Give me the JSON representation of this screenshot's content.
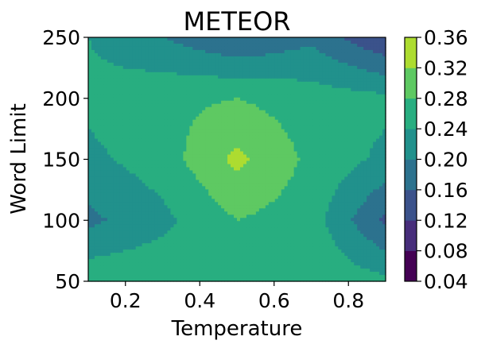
{
  "chart_data": {
    "type": "contourf",
    "title": "METEOR",
    "xlabel": "Temperature",
    "ylabel": "Word Limit",
    "xlim": [
      0.1,
      0.9
    ],
    "ylim": [
      50,
      250
    ],
    "x_ticks": [
      0.2,
      0.4,
      0.6,
      0.8
    ],
    "x_tick_labels": [
      "0.2",
      "0.4",
      "0.6",
      "0.8"
    ],
    "y_ticks": [
      50,
      100,
      150,
      200,
      250
    ],
    "y_tick_labels": [
      "50",
      "100",
      "150",
      "200",
      "250"
    ],
    "x": [
      0.1,
      0.3,
      0.5,
      0.7,
      0.9
    ],
    "y": [
      50,
      100,
      150,
      200,
      250
    ],
    "z": [
      [
        0.27,
        0.27,
        0.28,
        0.27,
        0.25
      ],
      [
        0.19,
        0.23,
        0.28,
        0.26,
        0.15
      ],
      [
        0.23,
        0.26,
        0.33,
        0.27,
        0.23
      ],
      [
        0.25,
        0.27,
        0.28,
        0.26,
        0.25
      ],
      [
        0.24,
        0.2,
        0.16,
        0.19,
        0.12
      ]
    ],
    "colorbar": {
      "levels": [
        0.04,
        0.08,
        0.12,
        0.16,
        0.2,
        0.24,
        0.28,
        0.32,
        0.36
      ],
      "tick_labels": [
        "0.04",
        "0.08",
        "0.12",
        "0.16",
        "0.20",
        "0.24",
        "0.28",
        "0.32",
        "0.36"
      ],
      "colors": [
        "#440154",
        "#472d7b",
        "#3b528b",
        "#2c728e",
        "#21918c",
        "#28ae80",
        "#5ec962",
        "#addc30",
        "#fde725"
      ]
    }
  }
}
